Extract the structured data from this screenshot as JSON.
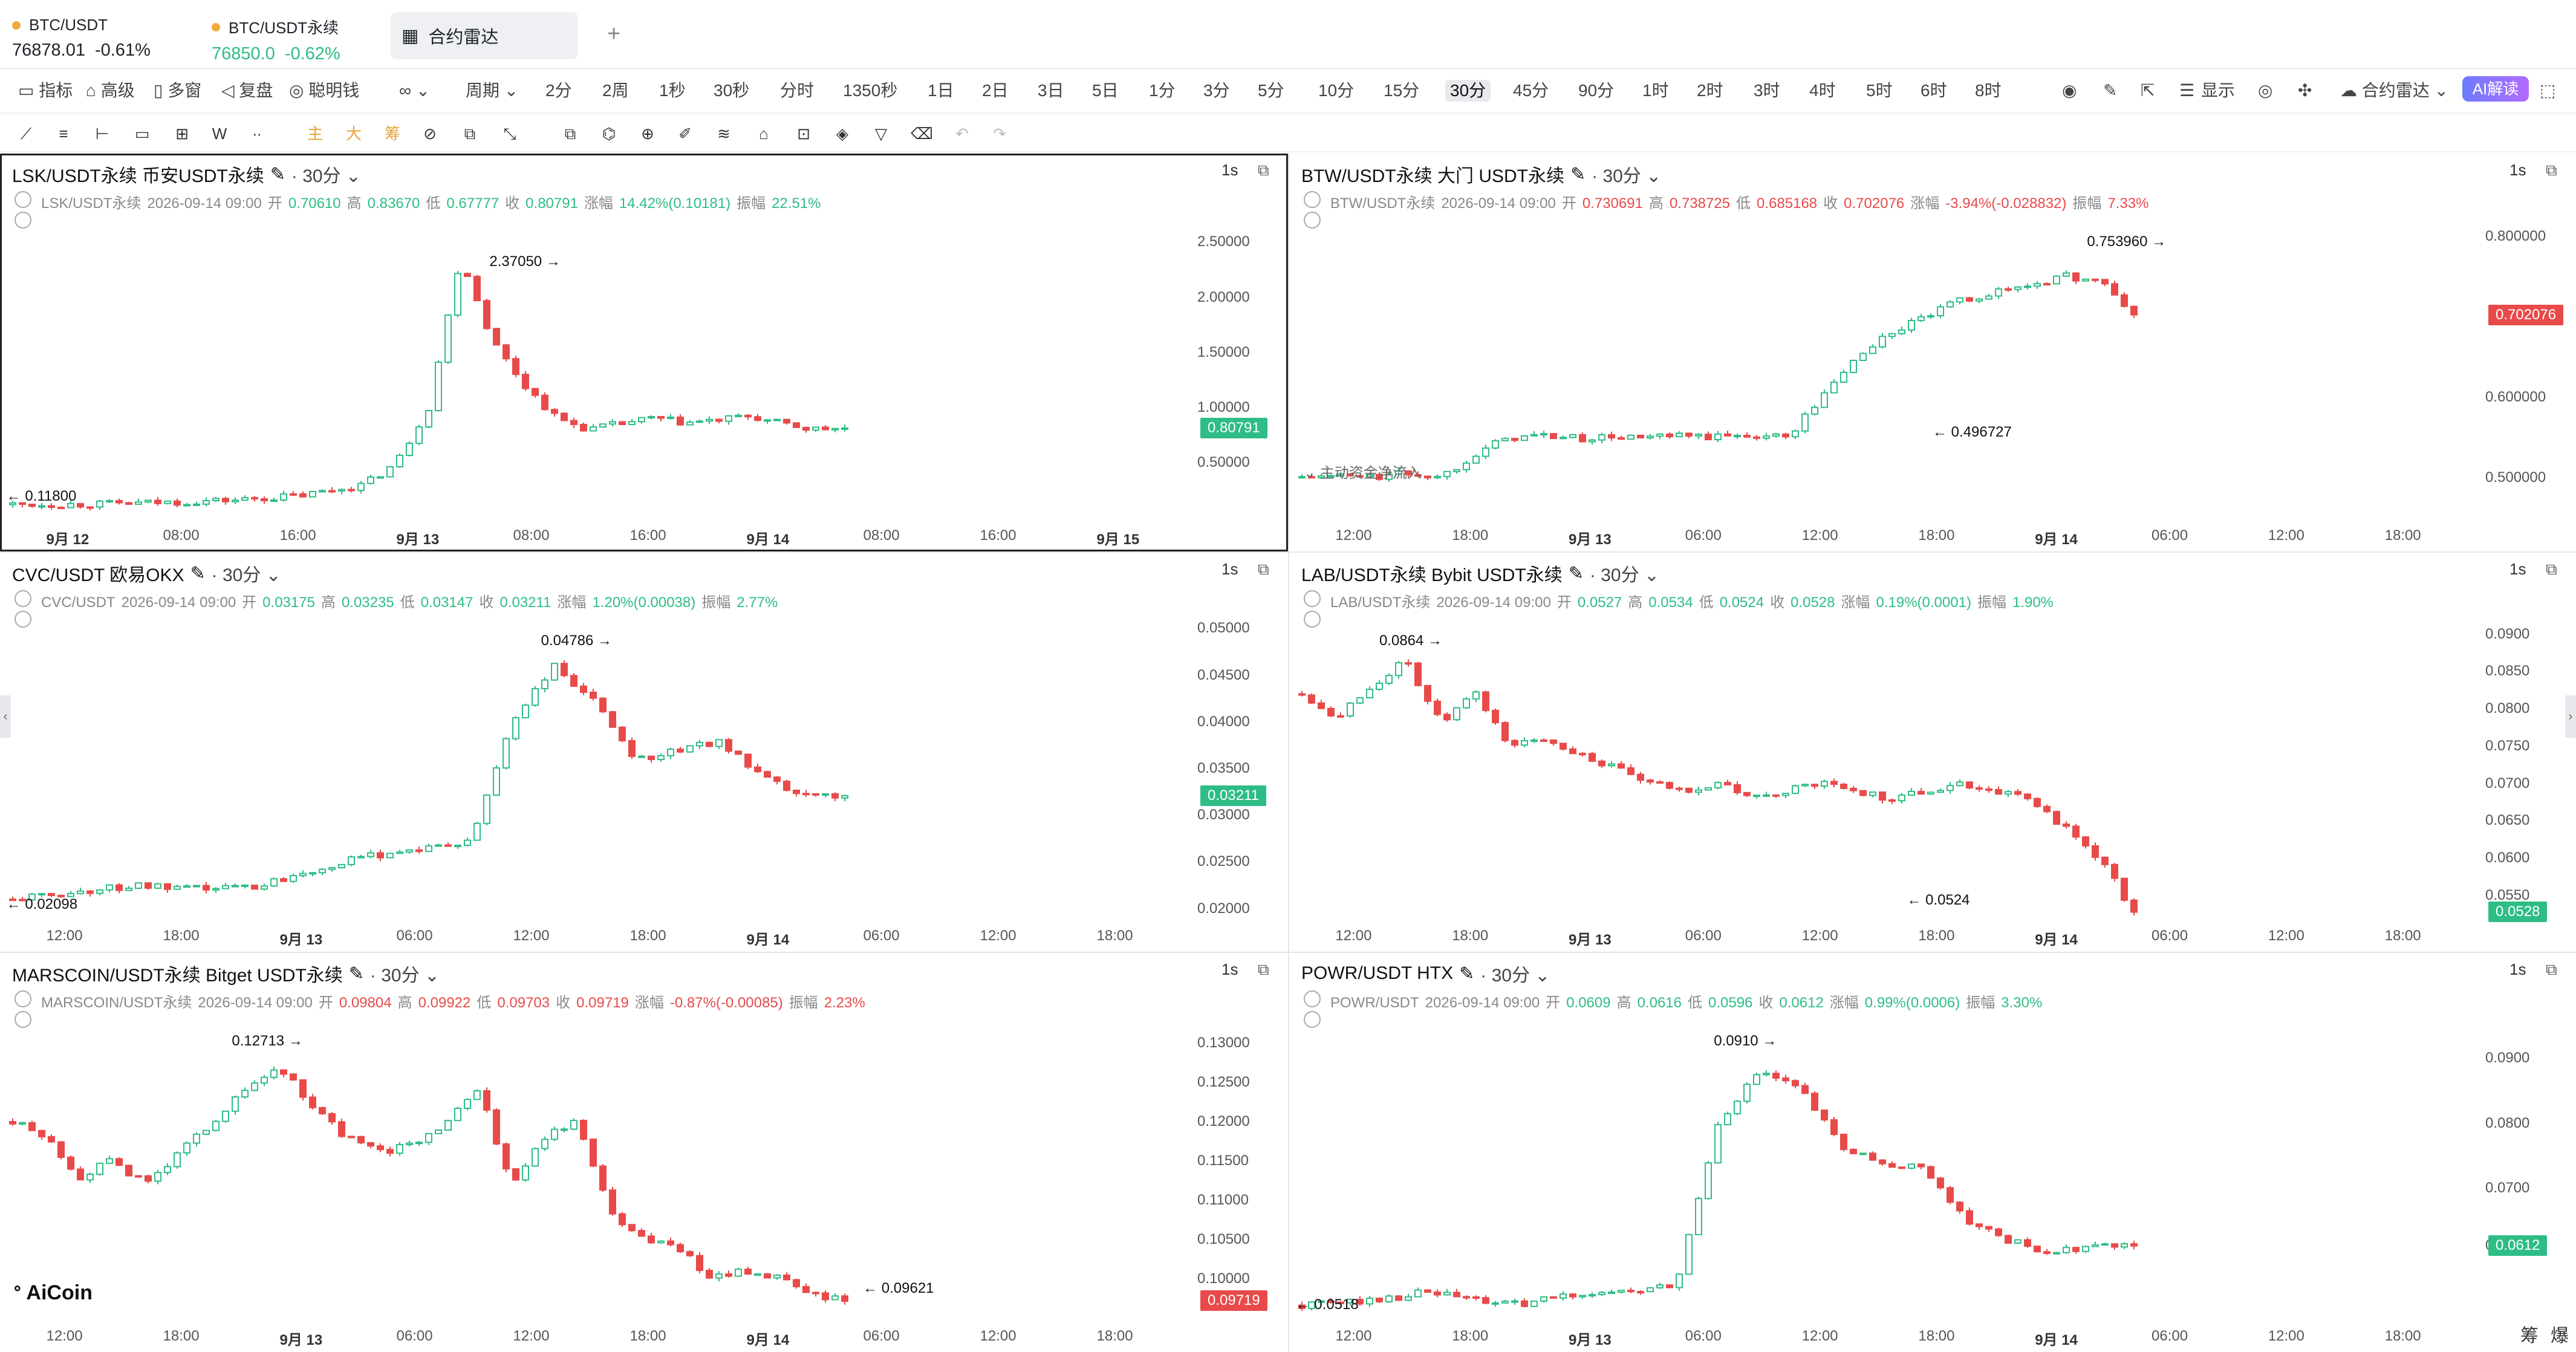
{
  "tickers": [
    {
      "name": "BTC/USDT",
      "price": "76878.01",
      "change": "-0.61%",
      "price_color": "#1f2329",
      "change_color": "#1f2329"
    },
    {
      "name": "BTC/USDT永续",
      "price": "76850.0",
      "change": "-0.62%",
      "price_color": "#2ebd85",
      "change_color": "#2ebd85"
    }
  ],
  "active_tab": "合约雷达",
  "toolbar": {
    "left": [
      "指标",
      "高级",
      "多窗",
      "复盘",
      "聪明钱"
    ],
    "period_label": "周期",
    "periods": [
      "2分",
      "2周",
      "1秒",
      "30秒",
      "分时",
      "1350秒",
      "1日",
      "2日",
      "3日",
      "5日",
      "1分",
      "3分",
      "5分",
      "10分",
      "15分",
      "30分",
      "45分",
      "90分",
      "1时",
      "2时",
      "3时",
      "4时",
      "5时",
      "6时",
      "8时"
    ],
    "active_period": "30分",
    "display_label": "显示",
    "radar_label": "合约雷达",
    "ai_label": "AI解读"
  },
  "drawing_tools": [
    "主",
    "大",
    "筹"
  ],
  "colors": {
    "up": "#2ebd85",
    "down": "#e84a4a"
  },
  "panels": [
    {
      "title": "LSK/USDT永续 币安USDT永续",
      "timeframe": "30分",
      "sec": "1s",
      "info": {
        "name": "LSK/USDT永续",
        "time": "2026-09-14 09:00",
        "open_label": "开",
        "open": "0.70610",
        "high_label": "高",
        "high": "0.83670",
        "low_label": "低",
        "low": "0.67777",
        "close_label": "收",
        "close": "0.80791",
        "chg_label": "涨幅",
        "chg": "14.42%(0.10181)",
        "amp_label": "振幅",
        "amp": "22.51%",
        "dir": "up"
      },
      "y_ticks": [
        "2.50000",
        "2.00000",
        "1.50000",
        "1.00000",
        "0.50000"
      ],
      "x_ticks": [
        "9月 12",
        "08:00",
        "16:00",
        "9月 13",
        "08:00",
        "16:00",
        "9月 14",
        "08:00",
        "16:00",
        "9月 15"
      ],
      "x_bold": [
        0,
        3,
        6,
        9
      ],
      "price_tag": "0.80791",
      "tag_color": "#2ebd85",
      "high_mark": "2.37050",
      "low_mark": "0.11800",
      "flow_label": ""
    },
    {
      "title": "BTW/USDT永续 大门 USDT永续",
      "timeframe": "30分",
      "sec": "1s",
      "info": {
        "name": "BTW/USDT永续",
        "time": "2026-09-14 09:00",
        "open_label": "开",
        "open": "0.730691",
        "high_label": "高",
        "high": "0.738725",
        "low_label": "低",
        "low": "0.685168",
        "close_label": "收",
        "close": "0.702076",
        "chg_label": "涨幅",
        "chg": "-3.94%(-0.028832)",
        "amp_label": "振幅",
        "amp": "7.33%",
        "dir": "dn"
      },
      "y_ticks": [
        "0.800000",
        "0.600000",
        "0.500000"
      ],
      "x_ticks": [
        "12:00",
        "18:00",
        "9月 13",
        "06:00",
        "12:00",
        "18:00",
        "9月 14",
        "06:00",
        "12:00",
        "18:00"
      ],
      "x_bold": [
        2,
        6
      ],
      "price_tag": "0.702076",
      "tag_color": "#e84a4a",
      "high_mark": "0.753960",
      "low_mark": "0.496727",
      "flow_label": "主动资金净流入"
    },
    {
      "title": "CVC/USDT 欧易OKX",
      "timeframe": "30分",
      "sec": "1s",
      "info": {
        "name": "CVC/USDT",
        "time": "2026-09-14 09:00",
        "open_label": "开",
        "open": "0.03175",
        "high_label": "高",
        "high": "0.03235",
        "low_label": "低",
        "low": "0.03147",
        "close_label": "收",
        "close": "0.03211",
        "chg_label": "涨幅",
        "chg": "1.20%(0.00038)",
        "amp_label": "振幅",
        "amp": "2.77%",
        "dir": "up"
      },
      "y_ticks": [
        "0.05000",
        "0.04500",
        "0.04000",
        "0.03500",
        "0.03000",
        "0.02500",
        "0.02000"
      ],
      "x_ticks": [
        "12:00",
        "18:00",
        "9月 13",
        "06:00",
        "12:00",
        "18:00",
        "9月 14",
        "06:00",
        "12:00",
        "18:00"
      ],
      "x_bold": [
        2,
        6
      ],
      "price_tag": "0.03211",
      "tag_color": "#2ebd85",
      "high_mark": "0.04786",
      "low_mark": "0.02098",
      "flow_label": ""
    },
    {
      "title": "LAB/USDT永续 Bybit USDT永续",
      "timeframe": "30分",
      "sec": "1s",
      "info": {
        "name": "LAB/USDT永续",
        "time": "2026-09-14 09:00",
        "open_label": "开",
        "open": "0.0527",
        "high_label": "高",
        "high": "0.0534",
        "low_label": "低",
        "low": "0.0524",
        "close_label": "收",
        "close": "0.0528",
        "chg_label": "涨幅",
        "chg": "0.19%(0.0001)",
        "amp_label": "振幅",
        "amp": "1.90%",
        "dir": "up"
      },
      "y_ticks": [
        "0.0900",
        "0.0850",
        "0.0800",
        "0.0750",
        "0.0700",
        "0.0650",
        "0.0600",
        "0.0550"
      ],
      "x_ticks": [
        "12:00",
        "18:00",
        "9月 13",
        "06:00",
        "12:00",
        "18:00",
        "9月 14",
        "06:00",
        "12:00",
        "18:00"
      ],
      "x_bold": [
        2,
        6
      ],
      "price_tag": "0.0528",
      "tag_color": "#2ebd85",
      "high_mark": "0.0864",
      "low_mark": "0.0524",
      "flow_label": ""
    },
    {
      "title": "MARSCOIN/USDT永续 Bitget USDT永续",
      "timeframe": "30分",
      "sec": "1s",
      "info": {
        "name": "MARSCOIN/USDT永续",
        "time": "2026-09-14 09:00",
        "open_label": "开",
        "open": "0.09804",
        "high_label": "高",
        "high": "0.09922",
        "low_label": "低",
        "low": "0.09703",
        "close_label": "收",
        "close": "0.09719",
        "chg_label": "涨幅",
        "chg": "-0.87%(-0.00085)",
        "amp_label": "振幅",
        "amp": "2.23%",
        "dir": "dn"
      },
      "y_ticks": [
        "0.13000",
        "0.12500",
        "0.12000",
        "0.11500",
        "0.11000",
        "0.10500",
        "0.10000"
      ],
      "x_ticks": [
        "12:00",
        "18:00",
        "9月 13",
        "06:00",
        "12:00",
        "18:00",
        "9月 14",
        "06:00",
        "12:00",
        "18:00"
      ],
      "x_bold": [
        2,
        6
      ],
      "price_tag": "0.09719",
      "tag_color": "#e84a4a",
      "high_mark": "0.12713",
      "low_mark": "0.09621",
      "flow_label": ""
    },
    {
      "title": "POWR/USDT HTX",
      "timeframe": "30分",
      "sec": "1s",
      "info": {
        "name": "POWR/USDT",
        "time": "2026-09-14 09:00",
        "open_label": "开",
        "open": "0.0609",
        "high_label": "高",
        "high": "0.0616",
        "low_label": "低",
        "low": "0.0596",
        "close_label": "收",
        "close": "0.0612",
        "chg_label": "涨幅",
        "chg": "0.99%(0.0006)",
        "amp_label": "振幅",
        "amp": "3.30%",
        "dir": "up"
      },
      "y_ticks": [
        "0.0900",
        "0.0800",
        "0.0700",
        "0.0612"
      ],
      "x_ticks": [
        "12:00",
        "18:00",
        "9月 13",
        "06:00",
        "12:00",
        "18:00",
        "9月 14",
        "06:00",
        "12:00",
        "18:00"
      ],
      "x_bold": [
        2,
        6
      ],
      "price_tag": "0.0612",
      "tag_color": "#2ebd85",
      "high_mark": "0.0910",
      "low_mark": "0.0518",
      "flow_label": ""
    }
  ],
  "logo": "AiCoin",
  "bottom_right": [
    "筹",
    "爆"
  ],
  "chart_data": [
    {
      "type": "candlestick",
      "name": "LSK/USDT永续",
      "ylim": [
        0,
        2.7
      ],
      "close_series": [
        0.118,
        0.12,
        0.12,
        0.125,
        0.13,
        0.14,
        0.15,
        0.16,
        0.18,
        0.2,
        0.25,
        0.3,
        0.5,
        1.0,
        2.37,
        1.6,
        1.2,
        0.9,
        0.8,
        0.85,
        0.9,
        0.86,
        0.88,
        0.92,
        0.85,
        0.8,
        0.81
      ]
    },
    {
      "type": "candlestick",
      "name": "BTW/USDT永续",
      "ylim": [
        0.45,
        0.82
      ],
      "close_series": [
        0.5,
        0.502,
        0.5,
        0.505,
        0.5,
        0.53,
        0.55,
        0.552,
        0.548,
        0.55,
        0.549,
        0.551,
        0.55,
        0.553,
        0.55,
        0.6,
        0.65,
        0.68,
        0.7,
        0.72,
        0.73,
        0.74,
        0.75,
        0.745,
        0.702
      ]
    },
    {
      "type": "candlestick",
      "name": "CVC/USDT",
      "ylim": [
        0.019,
        0.051
      ],
      "close_series": [
        0.021,
        0.0215,
        0.022,
        0.0225,
        0.022,
        0.0222,
        0.0225,
        0.024,
        0.025,
        0.026,
        0.0265,
        0.027,
        0.04,
        0.046,
        0.042,
        0.036,
        0.037,
        0.038,
        0.034,
        0.032,
        0.0321
      ]
    },
    {
      "type": "candlestick",
      "name": "LAB/USDT永续",
      "ylim": [
        0.052,
        0.092
      ],
      "close_series": [
        0.082,
        0.079,
        0.083,
        0.0864,
        0.078,
        0.082,
        0.075,
        0.076,
        0.074,
        0.072,
        0.07,
        0.069,
        0.07,
        0.068,
        0.069,
        0.07,
        0.069,
        0.068,
        0.069,
        0.07,
        0.069,
        0.068,
        0.064,
        0.06,
        0.0528
      ]
    },
    {
      "type": "candlestick",
      "name": "MARSCOIN/USDT永续",
      "ylim": [
        0.095,
        0.133
      ],
      "close_series": [
        0.12,
        0.118,
        0.113,
        0.115,
        0.112,
        0.116,
        0.12,
        0.124,
        0.127,
        0.122,
        0.118,
        0.116,
        0.117,
        0.12,
        0.124,
        0.112,
        0.118,
        0.12,
        0.108,
        0.105,
        0.104,
        0.1,
        0.101,
        0.1,
        0.098,
        0.0972
      ]
    },
    {
      "type": "candlestick",
      "name": "POWR/USDT",
      "ylim": [
        0.05,
        0.096
      ],
      "close_series": [
        0.052,
        0.0525,
        0.053,
        0.054,
        0.053,
        0.052,
        0.053,
        0.054,
        0.054,
        0.055,
        0.08,
        0.088,
        0.085,
        0.076,
        0.074,
        0.073,
        0.065,
        0.062,
        0.06,
        0.061,
        0.0612
      ]
    }
  ]
}
